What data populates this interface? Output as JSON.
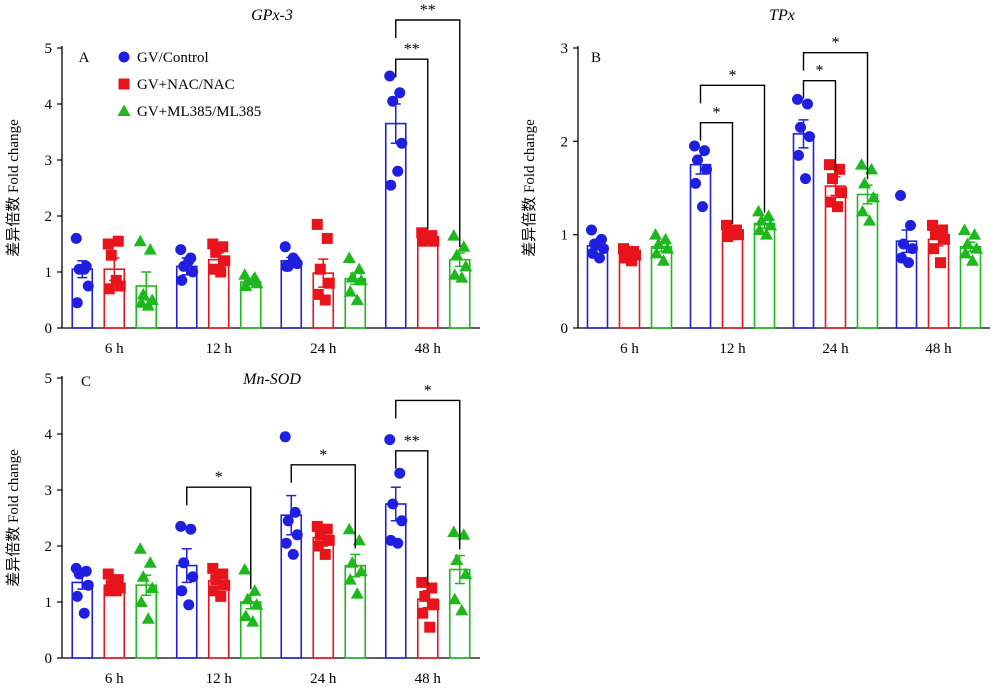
{
  "legend": [
    {
      "label": "GV/Control",
      "color": "#1f1fe0",
      "marker": "circle"
    },
    {
      "label": "GV+NAC/NAC",
      "color": "#e8141b",
      "marker": "square"
    },
    {
      "label": "GV+ML385/ML385",
      "color": "#1eb81e",
      "marker": "triangle"
    }
  ],
  "ylabel": "差异倍数 Fold change",
  "chart_data": [
    {
      "type": "bar",
      "panel": "A",
      "title": "GPx-3",
      "categories": [
        "6 h",
        "12 h",
        "24 h",
        "48 h"
      ],
      "ylim": [
        0,
        5
      ],
      "yticks": [
        0,
        1,
        2,
        3,
        4,
        5
      ],
      "legend_position": "top-left",
      "series": [
        {
          "name": "GV/Control",
          "values": [
            1.05,
            1.1,
            1.2,
            3.65
          ],
          "err": [
            0.15,
            0.15,
            0.06,
            0.35
          ],
          "points": [
            [
              1.6,
              1.1,
              1.05,
              0.75,
              0.45,
              1.05
            ],
            [
              1.4,
              1.25,
              1.1,
              1.0,
              0.85,
              1.2
            ],
            [
              1.45,
              1.2,
              1.1,
              1.15,
              1.1,
              1.25
            ],
            [
              4.5,
              4.2,
              4.05,
              3.3,
              2.55,
              2.8
            ]
          ]
        },
        {
          "name": "GV+NAC/NAC",
          "values": [
            1.05,
            1.22,
            0.98,
            1.6
          ],
          "err": [
            0.2,
            0.12,
            0.25,
            0.05
          ],
          "points": [
            [
              1.5,
              1.55,
              1.3,
              0.75,
              0.7,
              0.85
            ],
            [
              1.5,
              1.45,
              1.35,
              1.2,
              1.05,
              1.0
            ],
            [
              1.85,
              1.6,
              1.05,
              0.8,
              0.6,
              0.5
            ],
            [
              1.7,
              1.65,
              1.6,
              1.55,
              1.55,
              1.6
            ]
          ]
        },
        {
          "name": "GV+ML385/ML385",
          "values": [
            0.75,
            0.82,
            0.88,
            1.22
          ],
          "err": [
            0.25,
            0.05,
            0.1,
            0.12
          ],
          "points": [
            [
              1.55,
              1.4,
              0.6,
              0.5,
              0.45,
              0.4
            ],
            [
              0.95,
              0.9,
              0.85,
              0.8,
              0.75,
              0.85
            ],
            [
              1.25,
              1.05,
              0.9,
              0.85,
              0.65,
              0.5
            ],
            [
              1.65,
              1.45,
              1.3,
              1.1,
              0.95,
              0.9
            ]
          ]
        }
      ],
      "significance": [
        {
          "category": "48 h",
          "from": 0,
          "to": 1,
          "label": "**",
          "bracket_y": 4.8
        },
        {
          "category": "48 h",
          "from": 0,
          "to": 2,
          "label": "**",
          "bracket_y": 5.5
        }
      ]
    },
    {
      "type": "bar",
      "panel": "B",
      "title": "TPx",
      "categories": [
        "6 h",
        "12 h",
        "24 h",
        "48 h"
      ],
      "ylim": [
        0,
        3
      ],
      "yticks": [
        0,
        1,
        2,
        3
      ],
      "series": [
        {
          "name": "GV/Control",
          "values": [
            0.88,
            1.75,
            2.08,
            0.93
          ],
          "err": [
            0.04,
            0.1,
            0.15,
            0.12
          ],
          "points": [
            [
              1.05,
              0.95,
              0.9,
              0.85,
              0.8,
              0.75
            ],
            [
              1.95,
              1.9,
              1.8,
              1.7,
              1.55,
              1.3
            ],
            [
              2.45,
              2.4,
              2.15,
              2.05,
              1.85,
              1.6
            ],
            [
              1.42,
              1.1,
              0.9,
              0.85,
              0.75,
              0.7
            ]
          ]
        },
        {
          "name": "GV+NAC/NAC",
          "values": [
            0.8,
            1.02,
            1.52,
            0.95
          ],
          "err": [
            0.03,
            0.03,
            0.1,
            0.07
          ],
          "points": [
            [
              0.85,
              0.82,
              0.8,
              0.78,
              0.75,
              0.72
            ],
            [
              1.1,
              1.05,
              1.0,
              1.0,
              0.98,
              1.0
            ],
            [
              1.75,
              1.7,
              1.6,
              1.45,
              1.35,
              1.3
            ],
            [
              1.1,
              1.05,
              1.0,
              0.95,
              0.85,
              0.7
            ]
          ]
        },
        {
          "name": "GV+ML385/ML385",
          "values": [
            0.87,
            1.12,
            1.43,
            0.87
          ],
          "err": [
            0.05,
            0.05,
            0.1,
            0.05
          ],
          "points": [
            [
              1.0,
              0.95,
              0.9,
              0.85,
              0.8,
              0.72
            ],
            [
              1.25,
              1.2,
              1.15,
              1.1,
              1.05,
              1.0
            ],
            [
              1.75,
              1.7,
              1.55,
              1.4,
              1.25,
              1.15
            ],
            [
              1.05,
              1.0,
              0.9,
              0.85,
              0.8,
              0.72
            ]
          ]
        }
      ],
      "significance": [
        {
          "category": "12 h",
          "from": 0,
          "to": 1,
          "label": "*",
          "bracket_y": 2.2
        },
        {
          "category": "12 h",
          "from": 0,
          "to": 2,
          "label": "*",
          "bracket_y": 2.6
        },
        {
          "category": "24 h",
          "from": 0,
          "to": 1,
          "label": "*",
          "bracket_y": 2.65
        },
        {
          "category": "24 h",
          "from": 0,
          "to": 2,
          "label": "*",
          "bracket_y": 2.95
        }
      ]
    },
    {
      "type": "bar",
      "panel": "C",
      "title": "Mn-SOD",
      "categories": [
        "6 h",
        "12 h",
        "24 h",
        "48 h"
      ],
      "ylim": [
        0,
        5
      ],
      "yticks": [
        0,
        1,
        2,
        3,
        4,
        5
      ],
      "series": [
        {
          "name": "GV/Control",
          "values": [
            1.35,
            1.65,
            2.55,
            2.75
          ],
          "err": [
            0.12,
            0.3,
            0.35,
            0.3
          ],
          "points": [
            [
              1.6,
              1.55,
              1.5,
              1.3,
              1.1,
              0.8
            ],
            [
              2.35,
              2.3,
              1.7,
              1.45,
              1.2,
              0.95
            ],
            [
              3.95,
              2.6,
              2.45,
              2.2,
              2.05,
              1.85
            ],
            [
              3.9,
              3.3,
              2.75,
              2.45,
              2.1,
              2.05
            ]
          ]
        },
        {
          "name": "GV+NAC/NAC",
          "values": [
            1.3,
            1.38,
            2.15,
            1.05
          ],
          "err": [
            0.1,
            0.12,
            0.15,
            0.15
          ],
          "points": [
            [
              1.5,
              1.4,
              1.3,
              1.25,
              1.2,
              1.2
            ],
            [
              1.6,
              1.5,
              1.4,
              1.3,
              1.2,
              1.1
            ],
            [
              2.35,
              2.3,
              2.2,
              2.1,
              2.0,
              1.85
            ],
            [
              1.35,
              1.25,
              1.1,
              0.95,
              0.8,
              0.55
            ]
          ]
        },
        {
          "name": "GV+ML385/ML385",
          "values": [
            1.3,
            1.0,
            1.65,
            1.58
          ],
          "err": [
            0.18,
            0.12,
            0.2,
            0.25
          ],
          "points": [
            [
              1.95,
              1.7,
              1.45,
              1.25,
              1.0,
              0.7
            ],
            [
              1.58,
              1.2,
              1.05,
              0.95,
              0.75,
              0.65
            ],
            [
              2.3,
              2.1,
              1.7,
              1.55,
              1.4,
              1.15
            ],
            [
              2.25,
              2.2,
              1.75,
              1.5,
              1.05,
              0.85
            ]
          ]
        }
      ],
      "significance": [
        {
          "category": "12 h",
          "from": 0,
          "to": 2,
          "label": "*",
          "bracket_y": 3.05
        },
        {
          "category": "24 h",
          "from": 0,
          "to": 2,
          "label": "*",
          "bracket_y": 3.45
        },
        {
          "category": "48 h",
          "from": 0,
          "to": 1,
          "label": "**",
          "bracket_y": 3.7
        },
        {
          "category": "48 h",
          "from": 0,
          "to": 2,
          "label": "*",
          "bracket_y": 4.6
        }
      ]
    }
  ]
}
